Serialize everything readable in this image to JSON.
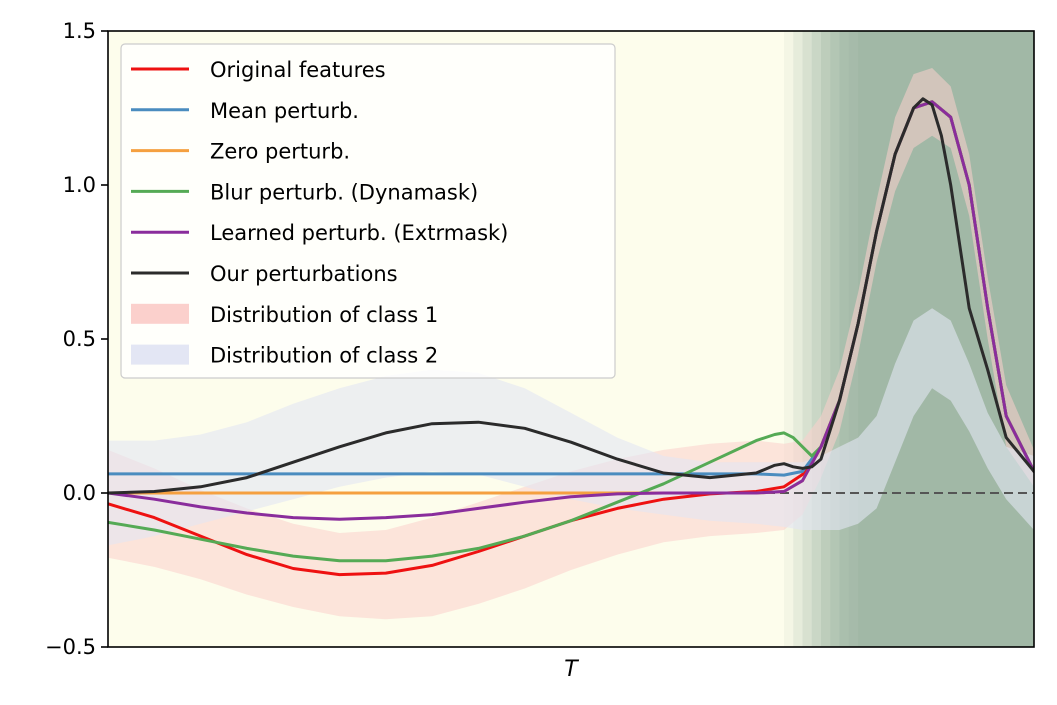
{
  "chart_data": {
    "type": "line",
    "xlabel": "T",
    "ylabel": "",
    "title": "",
    "xlim": [
      0,
      100
    ],
    "ylim": [
      -0.5,
      1.5
    ],
    "y_ticks": [
      -0.5,
      0.0,
      0.5,
      1.0,
      1.5
    ],
    "y_tick_labels": [
      "−0.5",
      "0.0",
      "0.5",
      "1.0",
      "1.5"
    ],
    "grid": false,
    "legend_placement": "top-left",
    "reference_line": {
      "y": 0.0,
      "style": "dashed",
      "color": "#555555"
    },
    "background_colors": {
      "base": "#fdfdec",
      "highlight": "#a1b8a6"
    },
    "background_importance": {
      "x": [
        0,
        72,
        73,
        74,
        75,
        76,
        77,
        78,
        79,
        80,
        81,
        82,
        100
      ],
      "values": [
        0.0,
        0.0,
        0.1,
        0.25,
        0.4,
        0.55,
        0.7,
        0.8,
        0.9,
        0.95,
        1.0,
        1.0,
        1.0
      ]
    },
    "series": [
      {
        "name": "Original features",
        "color": "#ee1111",
        "x": [
          0,
          5,
          10,
          15,
          20,
          25,
          30,
          35,
          40,
          45,
          50,
          55,
          60,
          65,
          70,
          73,
          75,
          77,
          79,
          81,
          83,
          85,
          87,
          89,
          91,
          93,
          95,
          97,
          100
        ],
        "y": [
          -0.035,
          -0.08,
          -0.14,
          -0.2,
          -0.245,
          -0.265,
          -0.26,
          -0.235,
          -0.19,
          -0.14,
          -0.09,
          -0.05,
          -0.02,
          -0.003,
          0.005,
          0.02,
          0.06,
          0.15,
          0.3,
          0.55,
          0.85,
          1.1,
          1.25,
          1.27,
          1.22,
          1.0,
          0.6,
          0.25,
          0.07
        ]
      },
      {
        "name": "Mean perturb.",
        "color": "#4a8cbf",
        "x": [
          0,
          10,
          20,
          30,
          40,
          50,
          60,
          70,
          73,
          75,
          77,
          79,
          81,
          83,
          85,
          87,
          89,
          91,
          93,
          95,
          97,
          100
        ],
        "y": [
          0.062,
          0.062,
          0.062,
          0.062,
          0.062,
          0.062,
          0.062,
          0.062,
          0.058,
          0.07,
          0.15,
          0.3,
          0.55,
          0.85,
          1.1,
          1.25,
          1.27,
          1.22,
          1.0,
          0.6,
          0.25,
          0.07
        ]
      },
      {
        "name": "Zero perturb.",
        "color": "#f5a040",
        "x": [
          0,
          10,
          20,
          30,
          40,
          50,
          60,
          70,
          73,
          75,
          77,
          79,
          81,
          83,
          85,
          87,
          89,
          91,
          93,
          95,
          97,
          100
        ],
        "y": [
          0.0,
          0.0,
          0.0,
          0.0,
          0.0,
          0.0,
          0.0,
          0.0,
          0.005,
          0.04,
          0.15,
          0.3,
          0.55,
          0.85,
          1.1,
          1.25,
          1.27,
          1.22,
          1.0,
          0.6,
          0.25,
          0.07
        ]
      },
      {
        "name": "Blur perturb. (Dynamask)",
        "color": "#55aa55",
        "x": [
          0,
          5,
          10,
          15,
          20,
          25,
          30,
          35,
          40,
          45,
          50,
          55,
          60,
          65,
          70,
          72,
          73,
          74,
          75,
          76,
          77,
          79,
          81,
          83,
          85,
          87,
          89,
          91,
          93,
          95,
          97,
          100
        ],
        "y": [
          -0.095,
          -0.12,
          -0.15,
          -0.18,
          -0.205,
          -0.22,
          -0.22,
          -0.205,
          -0.18,
          -0.14,
          -0.09,
          -0.03,
          0.03,
          0.1,
          0.17,
          0.19,
          0.195,
          0.18,
          0.15,
          0.12,
          0.15,
          0.3,
          0.55,
          0.85,
          1.1,
          1.25,
          1.27,
          1.22,
          1.0,
          0.6,
          0.25,
          0.07
        ]
      },
      {
        "name": "Learned perturb. (Extrmask)",
        "color": "#8a2d9c",
        "x": [
          0,
          5,
          10,
          15,
          20,
          25,
          30,
          35,
          40,
          45,
          50,
          55,
          60,
          65,
          70,
          73,
          75,
          77,
          79,
          81,
          83,
          85,
          87,
          89,
          91,
          93,
          95,
          97,
          100
        ],
        "y": [
          0.0,
          -0.02,
          -0.045,
          -0.065,
          -0.08,
          -0.085,
          -0.08,
          -0.07,
          -0.05,
          -0.03,
          -0.012,
          -0.003,
          0.0,
          0.0,
          0.0,
          0.005,
          0.04,
          0.15,
          0.3,
          0.55,
          0.85,
          1.1,
          1.25,
          1.27,
          1.22,
          1.0,
          0.6,
          0.25,
          0.07
        ]
      },
      {
        "name": "Our perturbations",
        "color": "#2b2b2b",
        "x": [
          0,
          5,
          10,
          15,
          20,
          25,
          30,
          35,
          40,
          45,
          50,
          55,
          60,
          65,
          70,
          72,
          73,
          74,
          75,
          76,
          77,
          79,
          81,
          83,
          85,
          87,
          88,
          89,
          90,
          91,
          93,
          95,
          97,
          100
        ],
        "y": [
          0.0,
          0.005,
          0.02,
          0.05,
          0.1,
          0.15,
          0.195,
          0.225,
          0.23,
          0.21,
          0.165,
          0.11,
          0.065,
          0.05,
          0.065,
          0.09,
          0.095,
          0.085,
          0.08,
          0.085,
          0.11,
          0.3,
          0.55,
          0.85,
          1.1,
          1.25,
          1.28,
          1.26,
          1.16,
          1.0,
          0.6,
          0.4,
          0.18,
          0.07
        ]
      }
    ],
    "bands": [
      {
        "name": "Distribution of class 1",
        "color": "#fbd0cc",
        "opacity": 0.55,
        "x": [
          0,
          5,
          10,
          15,
          20,
          25,
          30,
          35,
          40,
          45,
          50,
          55,
          60,
          65,
          70,
          73,
          75,
          77,
          79,
          81,
          83,
          85,
          87,
          89,
          91,
          93,
          95,
          97,
          100
        ],
        "lower": [
          -0.21,
          -0.24,
          -0.28,
          -0.33,
          -0.37,
          -0.4,
          -0.41,
          -0.4,
          -0.36,
          -0.31,
          -0.25,
          -0.2,
          -0.16,
          -0.14,
          -0.13,
          -0.12,
          -0.07,
          0.05,
          0.2,
          0.45,
          0.75,
          0.98,
          1.12,
          1.16,
          1.12,
          0.9,
          0.5,
          0.15,
          0.02
        ],
        "upper": [
          0.14,
          0.08,
          0.01,
          -0.05,
          -0.1,
          -0.13,
          -0.12,
          -0.08,
          -0.03,
          0.02,
          0.07,
          0.11,
          0.14,
          0.16,
          0.17,
          0.16,
          0.17,
          0.25,
          0.4,
          0.65,
          0.95,
          1.22,
          1.36,
          1.38,
          1.32,
          1.1,
          0.7,
          0.35,
          0.14
        ]
      },
      {
        "name": "Distribution of class 2",
        "color": "#e3e6f4",
        "opacity": 0.6,
        "x": [
          0,
          5,
          10,
          15,
          20,
          25,
          30,
          35,
          40,
          45,
          50,
          55,
          60,
          65,
          70,
          73,
          75,
          77,
          79,
          81,
          83,
          85,
          87,
          89,
          91,
          93,
          95,
          97,
          100
        ],
        "lower": [
          -0.17,
          -0.14,
          -0.1,
          -0.06,
          -0.02,
          0.02,
          0.05,
          0.07,
          0.06,
          0.02,
          -0.02,
          -0.05,
          -0.07,
          -0.09,
          -0.1,
          -0.11,
          -0.12,
          -0.12,
          -0.12,
          -0.1,
          -0.05,
          0.1,
          0.25,
          0.34,
          0.3,
          0.2,
          0.08,
          -0.02,
          -0.12
        ],
        "upper": [
          0.17,
          0.17,
          0.19,
          0.23,
          0.29,
          0.34,
          0.38,
          0.4,
          0.39,
          0.34,
          0.26,
          0.18,
          0.12,
          0.1,
          0.1,
          0.1,
          0.1,
          0.12,
          0.15,
          0.18,
          0.25,
          0.42,
          0.56,
          0.6,
          0.56,
          0.42,
          0.26,
          0.15,
          0.12
        ]
      }
    ],
    "legend": [
      {
        "label": "Original features",
        "kind": "line",
        "color": "#ee1111"
      },
      {
        "label": "Mean perturb.",
        "kind": "line",
        "color": "#4a8cbf"
      },
      {
        "label": "Zero perturb.",
        "kind": "line",
        "color": "#f5a040"
      },
      {
        "label": "Blur perturb. (Dynamask)",
        "kind": "line",
        "color": "#55aa55"
      },
      {
        "label": "Learned perturb. (Extrmask)",
        "kind": "line",
        "color": "#8a2d9c"
      },
      {
        "label": "Our perturbations",
        "kind": "line",
        "color": "#2b2b2b"
      },
      {
        "label": "Distribution of class 1",
        "kind": "patch",
        "color": "#fbd0cc"
      },
      {
        "label": "Distribution of class 2",
        "kind": "patch",
        "color": "#e3e6f4"
      }
    ]
  }
}
